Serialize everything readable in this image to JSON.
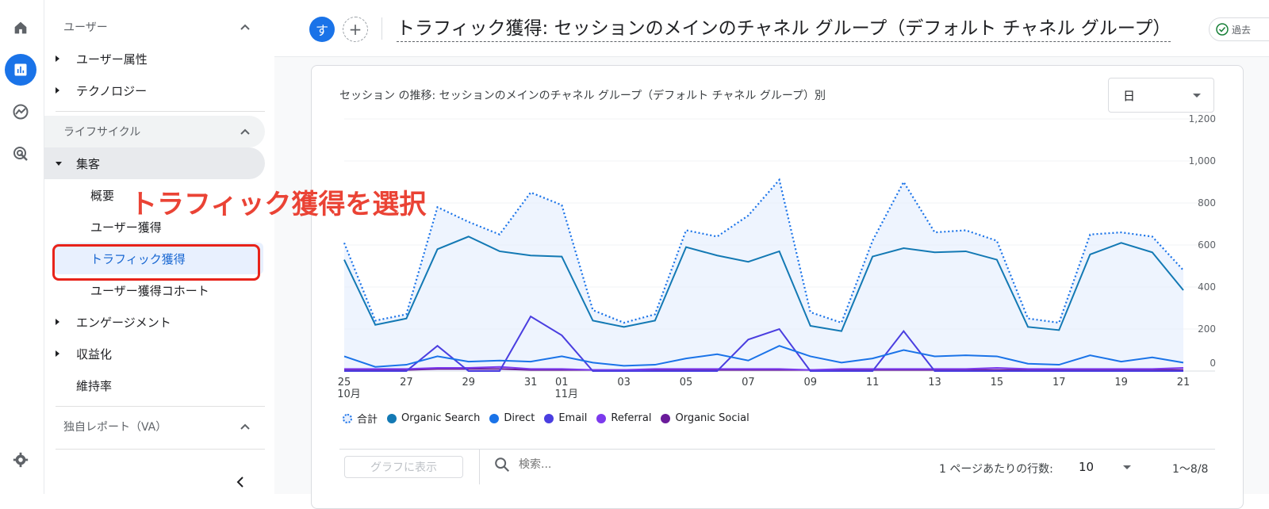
{
  "rail": {
    "items": [
      {
        "icon": "home-icon"
      },
      {
        "icon": "reports-icon",
        "active": true
      },
      {
        "icon": "explore-icon"
      },
      {
        "icon": "advertising-icon"
      }
    ],
    "settings_icon": "gear-icon"
  },
  "sidebar": {
    "users_section": "ユーザー",
    "user_attributes": "ユーザー属性",
    "technology": "テクノロジー",
    "lifecycle_section": "ライフサイクル",
    "acquisition": "集客",
    "overview": "概要",
    "user_acquisition": "ユーザー獲得",
    "traffic_acquisition": "トラフィック獲得",
    "user_acquisition_cohort": "ユーザー獲得コホート",
    "engagement": "エンゲージメント",
    "monetization": "収益化",
    "retention": "維持率",
    "custom_reports_section": "独自レポート（VA）"
  },
  "annotation": {
    "text": "トラフィック獲得を選択",
    "color": "#ea4335"
  },
  "header": {
    "avatar_letter": "す",
    "title": "トラフィック獲得: セッションのメインのチャネル グループ（デフォルト チャネル グループ）",
    "chip_label": "過去"
  },
  "card": {
    "title": "セッション の推移: セッションのメインのチャネル グループ（デフォルト チャネル グループ）別",
    "granularity": "日"
  },
  "chart_data": {
    "type": "line",
    "x": [
      "10-25",
      "10-26",
      "10-27",
      "10-28",
      "10-29",
      "10-30",
      "10-31",
      "11-01",
      "11-02",
      "11-03",
      "11-04",
      "11-05",
      "11-06",
      "11-07",
      "11-08",
      "11-09",
      "11-10",
      "11-11",
      "11-12",
      "11-13",
      "11-14",
      "11-15",
      "11-16",
      "11-17",
      "11-18",
      "11-19",
      "11-20",
      "11-21"
    ],
    "x_tick_labels": [
      {
        "label": "25",
        "sub": "10月",
        "index": 0
      },
      {
        "label": "27",
        "index": 2
      },
      {
        "label": "29",
        "index": 4
      },
      {
        "label": "31",
        "index": 6
      },
      {
        "label": "01",
        "sub": "11月",
        "index": 7
      },
      {
        "label": "03",
        "index": 9
      },
      {
        "label": "05",
        "index": 11
      },
      {
        "label": "07",
        "index": 13
      },
      {
        "label": "09",
        "index": 15
      },
      {
        "label": "11",
        "index": 17
      },
      {
        "label": "13",
        "index": 19
      },
      {
        "label": "15",
        "index": 21
      },
      {
        "label": "17",
        "index": 23
      },
      {
        "label": "19",
        "index": 25
      },
      {
        "label": "21",
        "index": 27
      }
    ],
    "y_ticks": [
      "0",
      "200",
      "400",
      "600",
      "800",
      "1,000",
      "1,200"
    ],
    "ylim": [
      0,
      1200
    ],
    "series": [
      {
        "name": "合計",
        "color": "#1a73e8",
        "dashed": true,
        "fill": true,
        "values": [
          610,
          240,
          270,
          780,
          710,
          650,
          850,
          790,
          290,
          230,
          270,
          670,
          640,
          740,
          910,
          280,
          230,
          620,
          900,
          660,
          670,
          620,
          250,
          230,
          650,
          660,
          640,
          480
        ]
      },
      {
        "name": "Organic Search",
        "color": "#1379b4",
        "values": [
          530,
          220,
          250,
          580,
          640,
          570,
          550,
          545,
          240,
          210,
          240,
          590,
          550,
          520,
          570,
          215,
          190,
          545,
          585,
          565,
          570,
          530,
          210,
          195,
          555,
          610,
          565,
          385
        ]
      },
      {
        "name": "Direct",
        "color": "#1a73e8",
        "values": [
          70,
          20,
          30,
          70,
          45,
          50,
          45,
          70,
          40,
          25,
          30,
          60,
          80,
          50,
          120,
          70,
          40,
          60,
          100,
          70,
          75,
          70,
          35,
          30,
          75,
          45,
          65,
          40
        ]
      },
      {
        "name": "Email",
        "color": "#4a3ee0",
        "values": [
          0,
          0,
          0,
          120,
          0,
          0,
          260,
          170,
          0,
          0,
          0,
          0,
          0,
          150,
          200,
          0,
          0,
          0,
          190,
          0,
          0,
          0,
          0,
          0,
          0,
          0,
          0,
          0
        ]
      },
      {
        "name": "Referral",
        "color": "#7c3aed",
        "values": [
          10,
          10,
          10,
          15,
          15,
          20,
          10,
          10,
          5,
          5,
          10,
          10,
          10,
          10,
          10,
          5,
          10,
          10,
          10,
          10,
          10,
          15,
          10,
          10,
          10,
          10,
          10,
          15
        ]
      },
      {
        "name": "Organic Social",
        "color": "#6a1b9a",
        "values": [
          5,
          5,
          5,
          10,
          10,
          10,
          5,
          5,
          5,
          5,
          5,
          5,
          5,
          5,
          5,
          5,
          5,
          5,
          5,
          5,
          5,
          5,
          5,
          5,
          5,
          5,
          5,
          5
        ]
      }
    ]
  },
  "toolbar": {
    "graph_button": "グラフに表示",
    "search_placeholder": "検索...",
    "rows_label": "1 ページあたりの行数:",
    "rows_value": "10",
    "range": "1〜8/8"
  }
}
